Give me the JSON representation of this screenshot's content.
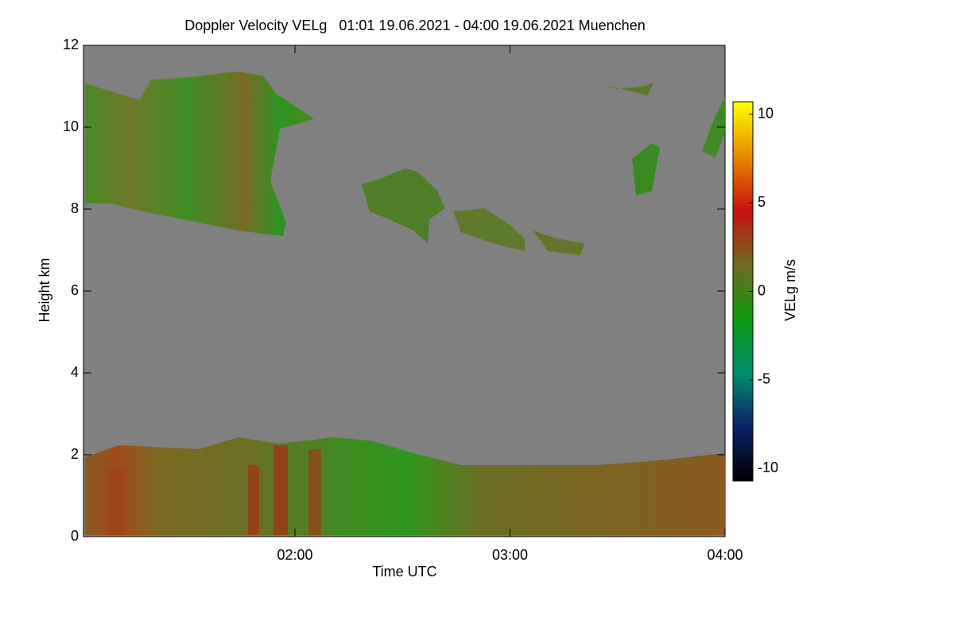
{
  "chart_data": {
    "type": "heatmap",
    "title": "Doppler Velocity VELg   01:01 19.06.2021 - 04:00 19.06.2021 Muenchen",
    "xlabel": "Time UTC",
    "ylabel": "Height km",
    "xlim": [
      61,
      240
    ],
    "xticks": [
      {
        "value": 120,
        "label": "02:00"
      },
      {
        "value": 180,
        "label": "03:00"
      },
      {
        "value": 240,
        "label": "04:00"
      }
    ],
    "ylim": [
      0,
      12
    ],
    "yticks": [
      0,
      2,
      4,
      6,
      8,
      10,
      12
    ],
    "colorbar": {
      "label": "VELg m/s",
      "lim": [
        -10.7,
        10.7
      ],
      "ticks": [
        -10,
        -5,
        0,
        5,
        10
      ],
      "colormap": [
        "#000000",
        "#0b1f6a",
        "#009070",
        "#109a10",
        "#6e6a20",
        "#c81010",
        "#e88a00",
        "#ffff00"
      ]
    },
    "background": "#808080"
  }
}
